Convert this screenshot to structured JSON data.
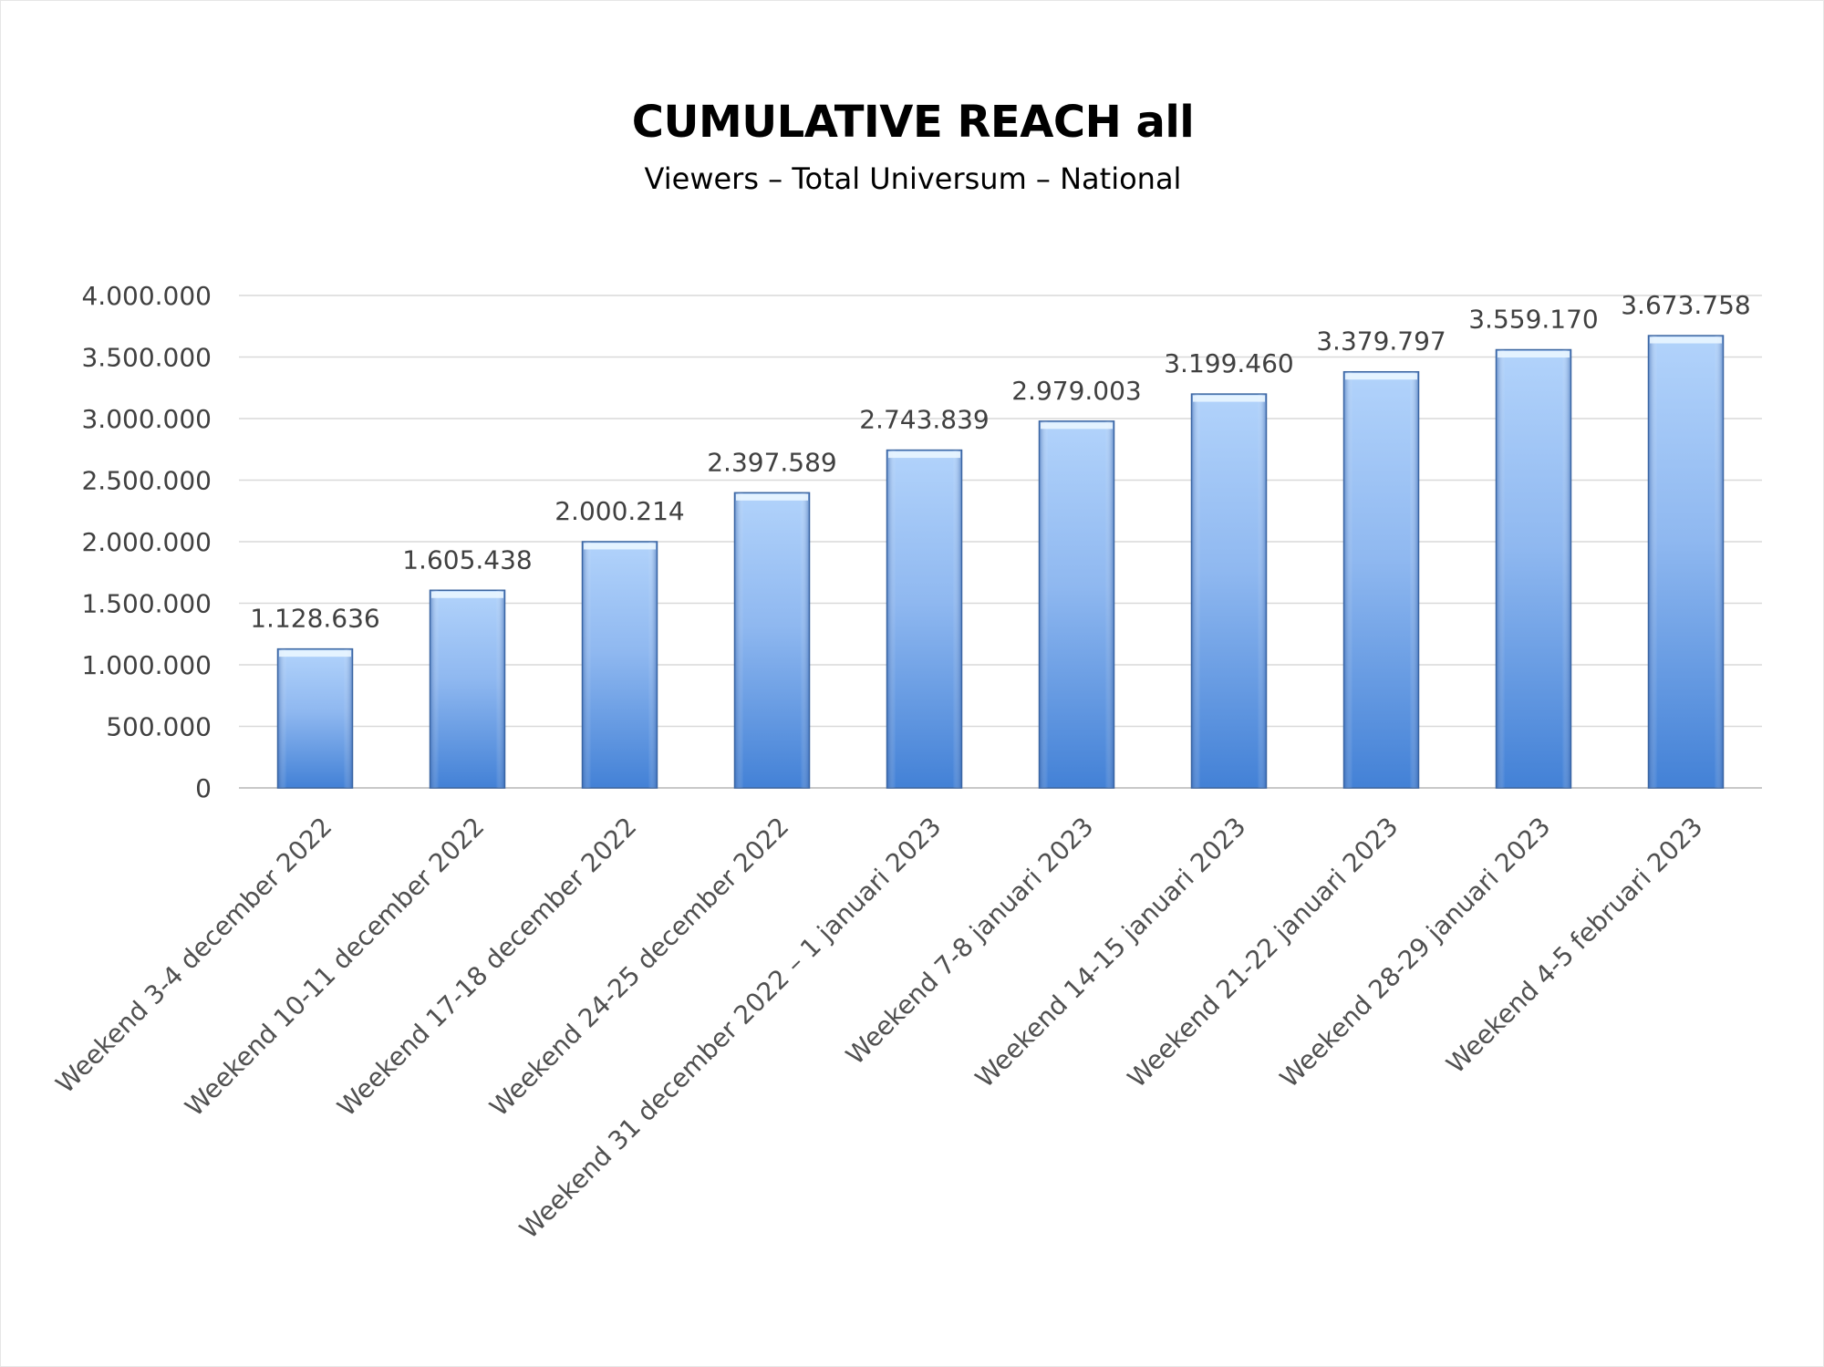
{
  "chart_data": {
    "type": "bar",
    "title": "CUMULATIVE REACH all",
    "subtitle": "Viewers – Total Universum – National",
    "categories": [
      "Weekend 3-4 december 2022",
      "Weekend 10-11 december 2022",
      "Weekend 17-18 december 2022",
      "Weekend 24-25 december 2022",
      "Weekend 31 december 2022 – 1 januari 2023",
      "Weekend 7-8 januari 2023",
      "Weekend 14-15 januari 2023",
      "Weekend 21-22 januari 2023",
      "Weekend 28-29 januari 2023",
      "Weekend 4-5 februari 2023"
    ],
    "values": [
      1128636,
      1605438,
      2000214,
      2397589,
      2743839,
      2979003,
      3199460,
      3379797,
      3559170,
      3673758
    ],
    "value_labels": [
      "1.128.636",
      "1.605.438",
      "2.000.214",
      "2.397.589",
      "2.743.839",
      "2.979.003",
      "3.199.460",
      "3.379.797",
      "3.559.170",
      "3.673.758"
    ],
    "ylim": [
      0,
      4000000
    ],
    "yticks": [
      0,
      500000,
      1000000,
      1500000,
      2000000,
      2500000,
      3000000,
      3500000,
      4000000
    ],
    "ytick_labels": [
      "0",
      "500.000",
      "1.000.000",
      "1.500.000",
      "2.000.000",
      "2.500.000",
      "3.000.000",
      "3.500.000",
      "4.000.000"
    ],
    "xlabel": "",
    "ylabel": "",
    "grid": true,
    "legend": "none",
    "colors": {
      "bar_top": "#a9cbf7",
      "bar_bottom": "#4584d6",
      "bar_edge": "#3c66a0",
      "bar_highlight": "#eaf6ff",
      "grid": "#d9d9d9",
      "axis": "#c8c8c8",
      "text": "#404040"
    }
  }
}
